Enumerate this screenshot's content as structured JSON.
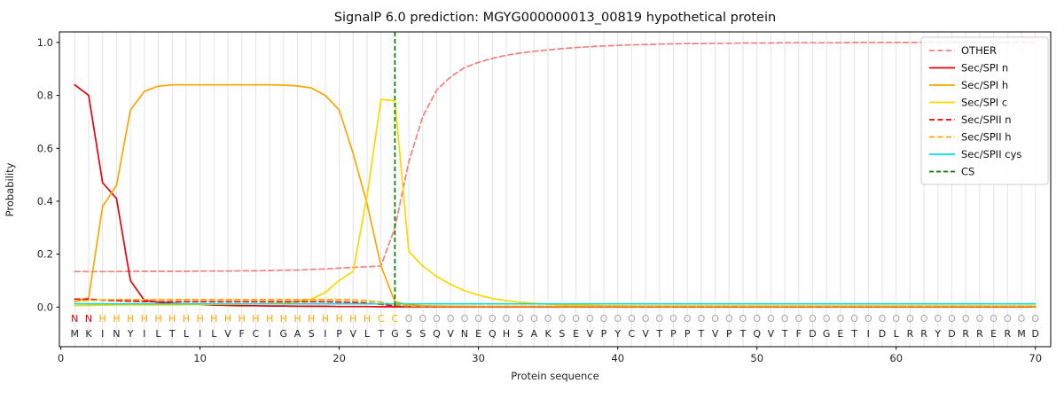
{
  "chart_data": {
    "type": "line",
    "title": "SignalP 6.0 prediction: MGYG000000013_00819 hypothetical protein",
    "xlabel": "Protein sequence",
    "ylabel": "Probability",
    "xlim": [
      -0.1,
      71.1
    ],
    "ylim": [
      -0.15,
      1.04
    ],
    "xticks": [
      0,
      10,
      20,
      30,
      40,
      50,
      60,
      70
    ],
    "yticks": [
      0.0,
      0.2,
      0.4,
      0.6,
      0.8,
      1.0
    ],
    "grid": "vertical-per-residue",
    "legend_position": "upper right",
    "x_start": 1,
    "series": [
      {
        "name": "OTHER",
        "color": "#f08080",
        "dash": [
          6,
          3.5
        ],
        "values": [
          0.134,
          0.134,
          0.134,
          0.134,
          0.135,
          0.135,
          0.135,
          0.135,
          0.135,
          0.136,
          0.136,
          0.136,
          0.137,
          0.137,
          0.138,
          0.139,
          0.14,
          0.142,
          0.144,
          0.147,
          0.15,
          0.152,
          0.155,
          0.3,
          0.55,
          0.72,
          0.82,
          0.87,
          0.905,
          0.925,
          0.94,
          0.952,
          0.96,
          0.967,
          0.972,
          0.977,
          0.981,
          0.984,
          0.987,
          0.989,
          0.991,
          0.992,
          0.994,
          0.995,
          0.996,
          0.996,
          0.997,
          0.997,
          0.998,
          0.998,
          0.998,
          0.999,
          0.999,
          0.999,
          0.999,
          0.999,
          1.0,
          1.0,
          1.0,
          1.0,
          1.0,
          1.0,
          1.0,
          1.0,
          1.0,
          1.0,
          1.0,
          1.0,
          1.0,
          1.0
        ]
      },
      {
        "name": "Sec/SPI n",
        "color": "#e8000b",
        "dash": null,
        "values": [
          0.84,
          0.8,
          0.47,
          0.41,
          0.1,
          0.025,
          0.018,
          0.014,
          0.011,
          0.009,
          0.007,
          0.006,
          0.005,
          0.005,
          0.004,
          0.004,
          0.003,
          0.003,
          0.003,
          0.002,
          0.002,
          0.002,
          0.001,
          0.001,
          0.001,
          0.001,
          0.001,
          0.001,
          0.001,
          0.001,
          0.001,
          0.001,
          0.001,
          0.001,
          0.001,
          0.001,
          0.001,
          0.001,
          0.001,
          0.001,
          0.001,
          0.001,
          0.001,
          0.001,
          0.001,
          0.001,
          0.001,
          0.001,
          0.001,
          0.001,
          0.001,
          0.001,
          0.001,
          0.001,
          0.001,
          0.001,
          0.001,
          0.001,
          0.001,
          0.001,
          0.001,
          0.001,
          0.001,
          0.001,
          0.001,
          0.001,
          0.001,
          0.001,
          0.001,
          0.001
        ]
      },
      {
        "name": "Sec/SPI h",
        "color": "#ffa500",
        "dash": null,
        "values": [
          0.02,
          0.035,
          0.38,
          0.46,
          0.745,
          0.815,
          0.835,
          0.84,
          0.84,
          0.84,
          0.84,
          0.84,
          0.84,
          0.84,
          0.84,
          0.839,
          0.836,
          0.828,
          0.8,
          0.745,
          0.58,
          0.39,
          0.155,
          0.02,
          0.008,
          0.005,
          0.004,
          0.003,
          0.003,
          0.002,
          0.002,
          0.002,
          0.002,
          0.002,
          0.002,
          0.002,
          0.002,
          0.002,
          0.002,
          0.002,
          0.002,
          0.002,
          0.002,
          0.002,
          0.002,
          0.002,
          0.002,
          0.002,
          0.002,
          0.002,
          0.002,
          0.002,
          0.002,
          0.002,
          0.002,
          0.002,
          0.002,
          0.002,
          0.002,
          0.002,
          0.002,
          0.002,
          0.002,
          0.002,
          0.002,
          0.002,
          0.002,
          0.002,
          0.002,
          0.002
        ]
      },
      {
        "name": "Sec/SPI c",
        "color": "#ffd700",
        "dash": null,
        "values": [
          0.005,
          0.006,
          0.007,
          0.008,
          0.008,
          0.008,
          0.008,
          0.008,
          0.009,
          0.009,
          0.01,
          0.01,
          0.011,
          0.012,
          0.013,
          0.015,
          0.02,
          0.03,
          0.055,
          0.1,
          0.135,
          0.42,
          0.785,
          0.78,
          0.21,
          0.155,
          0.115,
          0.085,
          0.062,
          0.045,
          0.032,
          0.024,
          0.018,
          0.014,
          0.011,
          0.009,
          0.007,
          0.006,
          0.005,
          0.005,
          0.004,
          0.004,
          0.004,
          0.004,
          0.004,
          0.004,
          0.004,
          0.004,
          0.004,
          0.004,
          0.004,
          0.004,
          0.004,
          0.004,
          0.004,
          0.004,
          0.004,
          0.004,
          0.004,
          0.004,
          0.004,
          0.004,
          0.004,
          0.004,
          0.004,
          0.004,
          0.004,
          0.004,
          0.004,
          0.004
        ]
      },
      {
        "name": "Sec/SPII n",
        "color": "#e8000b",
        "dash": [
          6,
          3.5
        ],
        "values": [
          0.03,
          0.03,
          0.026,
          0.024,
          0.022,
          0.021,
          0.02,
          0.02,
          0.02,
          0.02,
          0.02,
          0.02,
          0.02,
          0.02,
          0.02,
          0.02,
          0.02,
          0.02,
          0.02,
          0.019,
          0.018,
          0.015,
          0.01,
          0.005,
          0.003,
          0.002,
          0.002,
          0.002,
          0.002,
          0.002,
          0.002,
          0.002,
          0.002,
          0.002,
          0.002,
          0.002,
          0.002,
          0.002,
          0.002,
          0.002,
          0.002,
          0.002,
          0.002,
          0.002,
          0.002,
          0.002,
          0.002,
          0.002,
          0.002,
          0.002,
          0.002,
          0.002,
          0.002,
          0.002,
          0.002,
          0.002,
          0.002,
          0.002,
          0.002,
          0.002,
          0.002,
          0.002,
          0.002,
          0.002,
          0.002,
          0.002,
          0.002,
          0.002,
          0.002,
          0.002
        ]
      },
      {
        "name": "Sec/SPII h",
        "color": "#ffa500",
        "dash": [
          6,
          3.5
        ],
        "values": [
          0.022,
          0.025,
          0.027,
          0.028,
          0.028,
          0.028,
          0.028,
          0.028,
          0.028,
          0.028,
          0.028,
          0.028,
          0.028,
          0.028,
          0.028,
          0.028,
          0.028,
          0.028,
          0.028,
          0.028,
          0.027,
          0.024,
          0.018,
          0.008,
          0.004,
          0.003,
          0.003,
          0.003,
          0.003,
          0.003,
          0.003,
          0.003,
          0.003,
          0.003,
          0.003,
          0.003,
          0.003,
          0.003,
          0.003,
          0.003,
          0.003,
          0.003,
          0.003,
          0.003,
          0.003,
          0.003,
          0.003,
          0.003,
          0.003,
          0.003,
          0.003,
          0.003,
          0.003,
          0.003,
          0.003,
          0.003,
          0.003,
          0.003,
          0.003,
          0.003,
          0.003,
          0.003,
          0.003,
          0.003,
          0.003,
          0.003,
          0.003,
          0.003,
          0.003,
          0.003
        ]
      },
      {
        "name": "Sec/SPII cys",
        "color": "#00dfdf",
        "dash": null,
        "values": [
          0.012,
          0.012,
          0.012,
          0.012,
          0.012,
          0.012,
          0.012,
          0.012,
          0.012,
          0.012,
          0.012,
          0.012,
          0.012,
          0.012,
          0.012,
          0.012,
          0.012,
          0.012,
          0.012,
          0.012,
          0.012,
          0.012,
          0.012,
          0.012,
          0.012,
          0.012,
          0.012,
          0.012,
          0.012,
          0.012,
          0.012,
          0.012,
          0.012,
          0.012,
          0.012,
          0.012,
          0.012,
          0.012,
          0.012,
          0.012,
          0.012,
          0.012,
          0.012,
          0.012,
          0.012,
          0.012,
          0.012,
          0.012,
          0.012,
          0.012,
          0.012,
          0.012,
          0.012,
          0.012,
          0.012,
          0.012,
          0.012,
          0.012,
          0.012,
          0.012,
          0.012,
          0.012,
          0.012,
          0.012,
          0.012,
          0.012,
          0.012,
          0.012,
          0.012,
          0.012
        ]
      }
    ],
    "cs": {
      "label": "CS",
      "position": 24,
      "color": "#008000",
      "dash": [
        5,
        3
      ]
    },
    "sequence": "MKINYILTLILVFCIGASIPVLTGSSQVNEQHSAKSEVPYCVTPPTVPTQVTFDGETIDLRRYDRRERMD",
    "annotation": "NNHHHHHHHHHHHHHHHHHHHHCCOOOOOOOOOOOOOOOOOOOOOOOOOOOOOOOOOOOOOOOOOOOOOO",
    "annotation_colors": {
      "N": "#e8000b",
      "H": "#ffa500",
      "C": "#dfbe00",
      "O": "#a6a6a6"
    },
    "sequence_color": "#222222"
  }
}
